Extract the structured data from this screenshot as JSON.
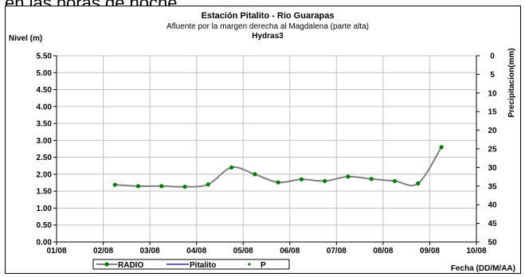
{
  "top_text": "en las horas de noche.",
  "chart_data": {
    "type": "line",
    "title": "Estación Pitalito  - Río Guarapas",
    "subtitle": "Afluente por la margen derecha al Magdalena (parte alta)",
    "subtitle2": "Hydras3",
    "ylabel": "Nivel (m)",
    "y2label": "Precipitacion(mm)",
    "xlabel": "Fecha (DD/M/AA)",
    "ylim": [
      0,
      5.5
    ],
    "y2lim_reversed": [
      0,
      50
    ],
    "grid": true,
    "x_ticks": [
      "01/08",
      "02/08",
      "03/08",
      "04/08",
      "05/08",
      "06/08",
      "07/08",
      "08/08",
      "09/08",
      "10/08"
    ],
    "y_ticks": [
      "0.00",
      "0.50",
      "1.00",
      "1.50",
      "2.00",
      "2.50",
      "3.00",
      "3.50",
      "4.00",
      "4.50",
      "5.00",
      "5.50"
    ],
    "y2_ticks": [
      "0",
      "5",
      "10",
      "15",
      "20",
      "25",
      "30",
      "35",
      "40",
      "45",
      "50"
    ],
    "legend": [
      "RADIO",
      "Pitalito",
      "P"
    ],
    "legend_position": "bottom",
    "series": [
      {
        "name": "RADIO",
        "color": "#808080",
        "marker_color": "#008000",
        "points": [
          [
            1.25,
            1.69
          ],
          [
            1.75,
            1.65
          ],
          [
            2.25,
            1.65
          ],
          [
            2.75,
            1.63
          ],
          [
            3.25,
            1.7
          ],
          [
            3.75,
            2.2
          ],
          [
            4.25,
            2.0
          ],
          [
            4.75,
            1.76
          ],
          [
            5.25,
            1.85
          ],
          [
            5.75,
            1.8
          ],
          [
            6.25,
            1.93
          ],
          [
            6.75,
            1.86
          ],
          [
            7.25,
            1.8
          ],
          [
            7.75,
            1.73
          ],
          [
            8.25,
            2.8
          ]
        ]
      }
    ]
  }
}
